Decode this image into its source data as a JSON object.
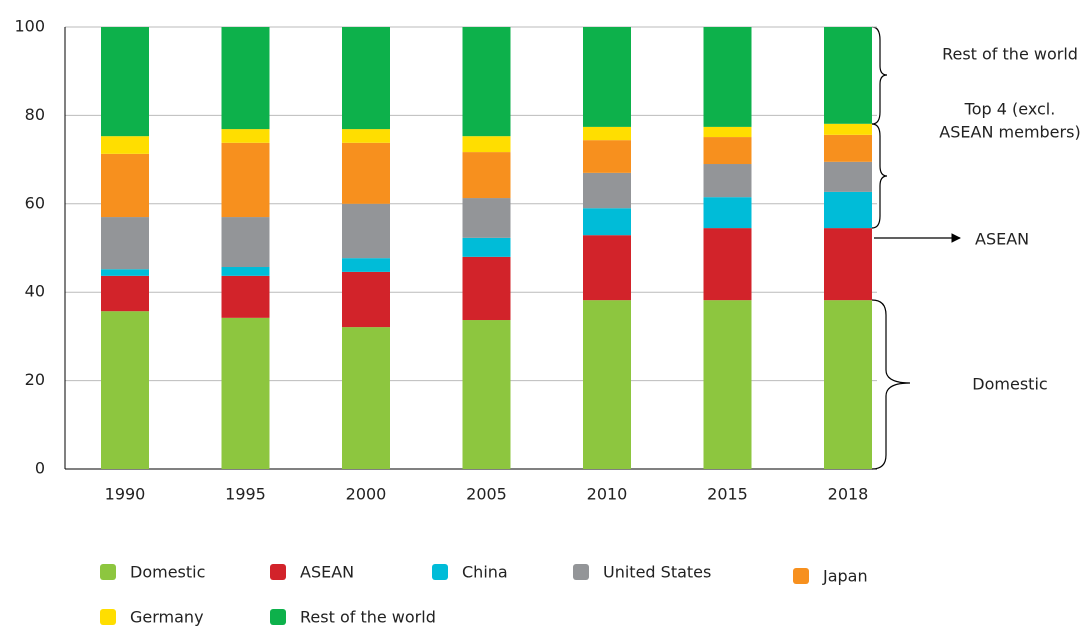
{
  "chart_data": {
    "type": "stacked-bar",
    "categories": [
      "1990",
      "1995",
      "2000",
      "2005",
      "2010",
      "2015",
      "2018"
    ],
    "series": [
      {
        "name": "Domestic",
        "color": "#8dc63f",
        "values": [
          35.7,
          34.2,
          32.1,
          33.7,
          38.2,
          38.2,
          38.2
        ]
      },
      {
        "name": "ASEAN",
        "color": "#d2232a",
        "values": [
          8.0,
          9.5,
          12.5,
          14.3,
          14.7,
          16.3,
          16.3
        ]
      },
      {
        "name": "China",
        "color": "#00bcd8",
        "values": [
          1.5,
          2.0,
          3.1,
          4.3,
          6.1,
          7.0,
          8.2
        ]
      },
      {
        "name": "United States",
        "color": "#939598",
        "values": [
          11.8,
          11.3,
          12.3,
          9.0,
          8.0,
          7.5,
          6.8
        ]
      },
      {
        "name": "Japan",
        "color": "#f7901e",
        "values": [
          14.3,
          16.8,
          13.8,
          10.4,
          7.4,
          6.1,
          6.1
        ]
      },
      {
        "name": "Germany",
        "color": "#ffde00",
        "values": [
          4.0,
          3.1,
          3.1,
          3.6,
          3.0,
          2.3,
          2.5
        ]
      },
      {
        "name": "Rest of the world",
        "color": "#0db14b",
        "values": [
          24.7,
          23.1,
          23.1,
          24.7,
          22.6,
          22.6,
          21.9
        ]
      }
    ],
    "ylim": [
      0,
      100
    ],
    "yticks": [
      0,
      20,
      40,
      60,
      80,
      100
    ],
    "grid": true,
    "annotations": [
      {
        "lines": [
          "Rest of the world"
        ]
      },
      {
        "lines": [
          "Top 4 (excl.",
          "ASEAN members)"
        ]
      },
      {
        "lines": [
          "ASEAN"
        ]
      },
      {
        "lines": [
          "Domestic"
        ]
      }
    ]
  }
}
